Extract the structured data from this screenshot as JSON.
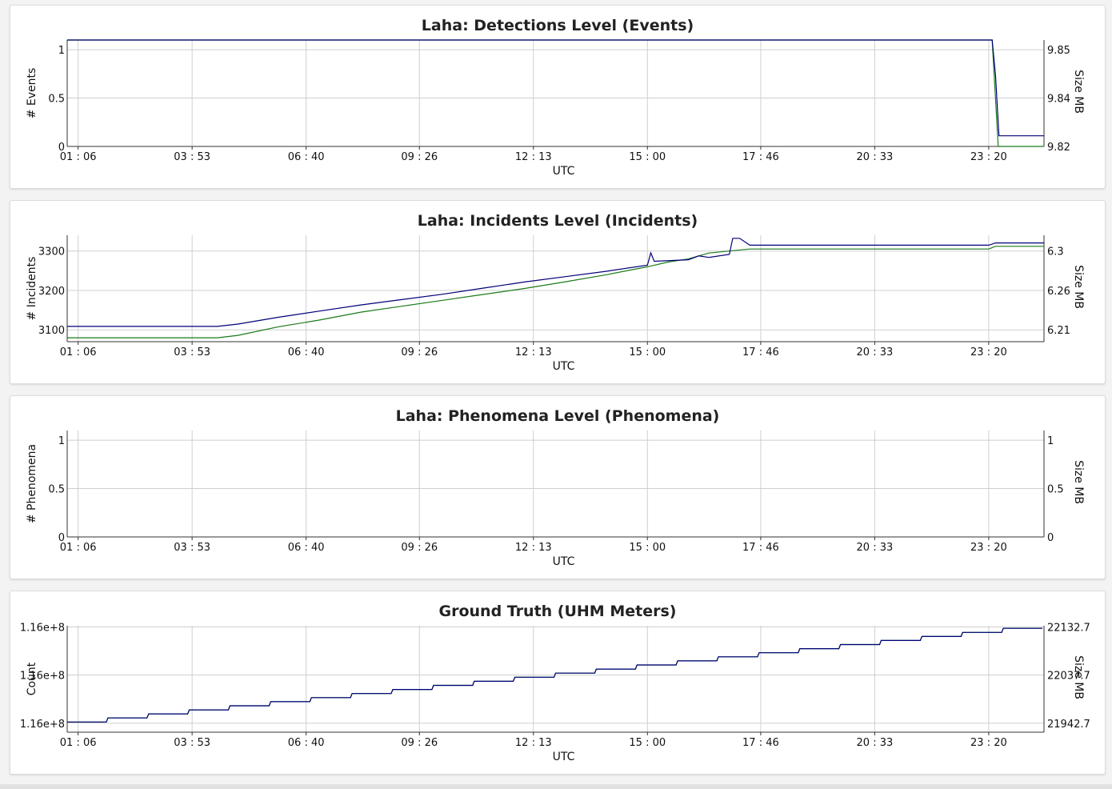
{
  "chart_data": [
    {
      "type": "line",
      "title": "Laha: Detections Level (Events)",
      "xlabel": "UTC",
      "ylabel": "# Events",
      "y2label": "Size MB",
      "x_ticks": [
        "01 : 06",
        "03 : 53",
        "06 : 40",
        "09 : 26",
        "12 : 13",
        "15 : 00",
        "17 : 46",
        "20 : 33",
        "23 : 20"
      ],
      "y_ticks": [
        "0",
        "0.5",
        "1"
      ],
      "y2_ticks": [
        "9.82",
        "9.84",
        "9.85"
      ],
      "ylim": [
        0,
        1
      ],
      "y2lim": [
        9.82,
        9.85
      ],
      "grid": true,
      "series": [
        {
          "color": "#1a7a1a",
          "axis": "left",
          "x": [
            "00:50",
            "23:25",
            "23:34",
            "24:41"
          ],
          "values": [
            1,
            1,
            0,
            0
          ]
        },
        {
          "color": "#00007a",
          "axis": "right",
          "x": [
            "00:50",
            "23:25",
            "23:30",
            "23:35",
            "24:41"
          ],
          "values": [
            9.85,
            9.85,
            9.84,
            9.823,
            9.823
          ]
        }
      ]
    },
    {
      "type": "line",
      "title": "Laha: Incidents Level (Incidents)",
      "xlabel": "UTC",
      "ylabel": "# Incidents",
      "y2label": "Size MB",
      "x_ticks": [
        "01 : 06",
        "03 : 53",
        "06 : 40",
        "09 : 26",
        "12 : 13",
        "15 : 00",
        "17 : 46",
        "20 : 33",
        "23 : 20"
      ],
      "y_ticks": [
        "3100",
        "3200",
        "3300"
      ],
      "y2_ticks": [
        "6.21",
        "6.26",
        "6.3"
      ],
      "ylim": [
        3070,
        3340
      ],
      "y2lim": [
        6.18,
        6.319
      ],
      "grid": true,
      "series": [
        {
          "color": "#1a7a1a",
          "axis": "left",
          "x": [
            "00:50",
            "04:30",
            "05:00",
            "06:00",
            "07:00",
            "08:00",
            "09:00",
            "10:00",
            "11:00",
            "12:00",
            "13:00",
            "14:00",
            "15:00",
            "15:30",
            "16:00",
            "16:30",
            "17:30",
            "23:20",
            "23:30",
            "24:41"
          ],
          "values": [
            3080,
            3080,
            3086,
            3108,
            3125,
            3145,
            3160,
            3175,
            3190,
            3205,
            3222,
            3240,
            3260,
            3272,
            3280,
            3295,
            3305,
            3305,
            3312,
            3312
          ]
        },
        {
          "color": "#00007a",
          "axis": "right",
          "x": [
            "00:50",
            "04:30",
            "05:00",
            "06:00",
            "07:00",
            "08:00",
            "09:00",
            "10:00",
            "11:00",
            "12:00",
            "13:00",
            "14:00",
            "15:00",
            "15:05",
            "15:10",
            "16:00",
            "16:15",
            "16:30",
            "17:00",
            "17:05",
            "17:15",
            "17:30",
            "23:20",
            "23:30",
            "24:41"
          ],
          "values": [
            6.2,
            6.2,
            6.203,
            6.212,
            6.22,
            6.228,
            6.235,
            6.242,
            6.25,
            6.258,
            6.265,
            6.272,
            6.28,
            6.296,
            6.285,
            6.287,
            6.292,
            6.29,
            6.294,
            6.315,
            6.315,
            6.306,
            6.306,
            6.309,
            6.309
          ]
        }
      ]
    },
    {
      "type": "line",
      "title": "Laha: Phenomena Level (Phenomena)",
      "xlabel": "UTC",
      "ylabel": "# Phenomena",
      "y2label": "Size MB",
      "x_ticks": [
        "01 : 06",
        "03 : 53",
        "06 : 40",
        "09 : 26",
        "12 : 13",
        "15 : 00",
        "17 : 46",
        "20 : 33",
        "23 : 20"
      ],
      "y_ticks": [
        "0",
        "0.5",
        "1"
      ],
      "y2_ticks": [
        "0",
        "0.5",
        "1"
      ],
      "ylim": [
        0,
        1
      ],
      "y2lim": [
        0,
        1
      ],
      "grid": true,
      "series": []
    },
    {
      "type": "line",
      "title": "Ground Truth (UHM Meters)",
      "xlabel": "UTC",
      "ylabel": "Count",
      "y2label": "Size MB",
      "x_ticks": [
        "01 : 06",
        "03 : 53",
        "06 : 40",
        "09 : 26",
        "12 : 13",
        "15 : 00",
        "17 : 46",
        "20 : 33",
        "23 : 20"
      ],
      "y_ticks": [
        "1.16e+8",
        "1.16e+8",
        "1.16e+8"
      ],
      "y2_ticks": [
        "21942.7",
        "22037.7",
        "22132.7"
      ],
      "ylim": [
        21925,
        22135
      ],
      "y2lim": [
        21925,
        22135
      ],
      "grid": true,
      "series": [
        {
          "color": "#1a7a1a",
          "axis": "right",
          "steps": 24,
          "start": "00:50",
          "end": "24:41",
          "from": 21945,
          "to": 22130
        },
        {
          "color": "#00007a",
          "axis": "right",
          "steps": 24,
          "start": "00:50",
          "end": "24:41",
          "from": 21945,
          "to": 22130
        }
      ]
    }
  ]
}
